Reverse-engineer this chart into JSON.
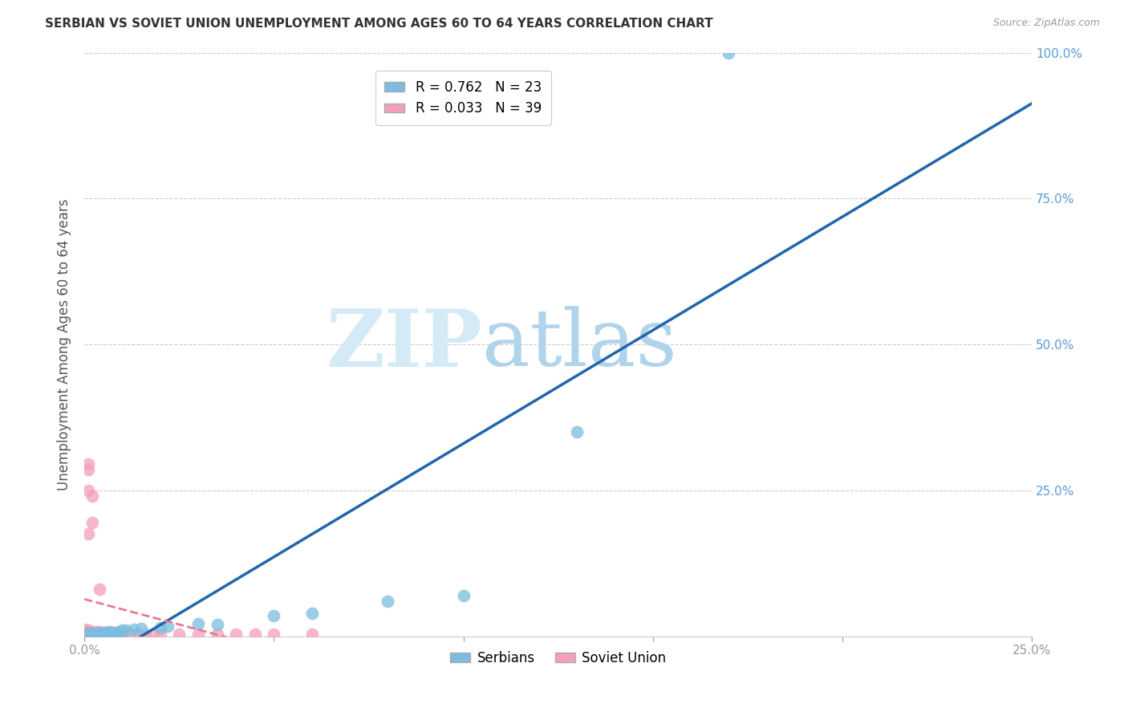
{
  "title": "SERBIAN VS SOVIET UNION UNEMPLOYMENT AMONG AGES 60 TO 64 YEARS CORRELATION CHART",
  "source": "Source: ZipAtlas.com",
  "ylabel": "Unemployment Among Ages 60 to 64 years",
  "xlim": [
    0,
    0.25
  ],
  "ylim": [
    0,
    1.0
  ],
  "xticks": [
    0.0,
    0.05,
    0.1,
    0.15,
    0.2,
    0.25
  ],
  "yticks": [
    0.0,
    0.25,
    0.5,
    0.75,
    1.0
  ],
  "xticklabels": [
    "0.0%",
    "",
    "",
    "",
    "",
    "25.0%"
  ],
  "left_yticklabels": [
    "",
    "",
    "",
    "",
    ""
  ],
  "right_yticklabels": [
    "",
    "25.0%",
    "50.0%",
    "75.0%",
    "100.0%"
  ],
  "serbian_R": 0.762,
  "serbian_N": 23,
  "soviet_R": 0.033,
  "soviet_N": 39,
  "serbian_color": "#7bbde0",
  "soviet_color": "#f4a0b8",
  "serbian_line_color": "#2166ac",
  "soviet_line_color": "#e87a97",
  "watermark_zip": "ZIP",
  "watermark_atlas": "atlas",
  "watermark_color_zip": "#d5eaf7",
  "watermark_color_atlas": "#b0d4ec",
  "background_color": "#ffffff",
  "serbian_points": [
    [
      0.001,
      0.006
    ],
    [
      0.002,
      0.004
    ],
    [
      0.003,
      0.005
    ],
    [
      0.004,
      0.007
    ],
    [
      0.005,
      0.005
    ],
    [
      0.006,
      0.008
    ],
    [
      0.007,
      0.007
    ],
    [
      0.008,
      0.006
    ],
    [
      0.009,
      0.008
    ],
    [
      0.01,
      0.01
    ],
    [
      0.011,
      0.01
    ],
    [
      0.013,
      0.012
    ],
    [
      0.015,
      0.013
    ],
    [
      0.02,
      0.015
    ],
    [
      0.022,
      0.018
    ],
    [
      0.03,
      0.022
    ],
    [
      0.035,
      0.02
    ],
    [
      0.05,
      0.035
    ],
    [
      0.06,
      0.04
    ],
    [
      0.08,
      0.06
    ],
    [
      0.1,
      0.07
    ],
    [
      0.13,
      0.35
    ],
    [
      0.17,
      1.0
    ]
  ],
  "soviet_points": [
    [
      0.0,
      0.004
    ],
    [
      0.0,
      0.008
    ],
    [
      0.0,
      0.012
    ],
    [
      0.001,
      0.004
    ],
    [
      0.001,
      0.007
    ],
    [
      0.001,
      0.011
    ],
    [
      0.001,
      0.175
    ],
    [
      0.001,
      0.25
    ],
    [
      0.001,
      0.285
    ],
    [
      0.001,
      0.295
    ],
    [
      0.002,
      0.004
    ],
    [
      0.002,
      0.008
    ],
    [
      0.002,
      0.195
    ],
    [
      0.002,
      0.24
    ],
    [
      0.003,
      0.004
    ],
    [
      0.003,
      0.008
    ],
    [
      0.004,
      0.004
    ],
    [
      0.004,
      0.008
    ],
    [
      0.004,
      0.08
    ],
    [
      0.005,
      0.004
    ],
    [
      0.005,
      0.007
    ],
    [
      0.006,
      0.004
    ],
    [
      0.007,
      0.004
    ],
    [
      0.007,
      0.008
    ],
    [
      0.008,
      0.004
    ],
    [
      0.009,
      0.004
    ],
    [
      0.01,
      0.004
    ],
    [
      0.012,
      0.004
    ],
    [
      0.014,
      0.004
    ],
    [
      0.016,
      0.004
    ],
    [
      0.018,
      0.004
    ],
    [
      0.02,
      0.004
    ],
    [
      0.025,
      0.004
    ],
    [
      0.03,
      0.004
    ],
    [
      0.035,
      0.004
    ],
    [
      0.04,
      0.004
    ],
    [
      0.045,
      0.004
    ],
    [
      0.05,
      0.004
    ],
    [
      0.06,
      0.004
    ]
  ],
  "grid_color": "#cccccc",
  "tick_color": "#999999",
  "ylabel_color": "#555555",
  "right_tick_color": "#5b9bd5",
  "title_fontsize": 11,
  "source_fontsize": 9,
  "axis_fontsize": 11,
  "ylabel_fontsize": 12
}
